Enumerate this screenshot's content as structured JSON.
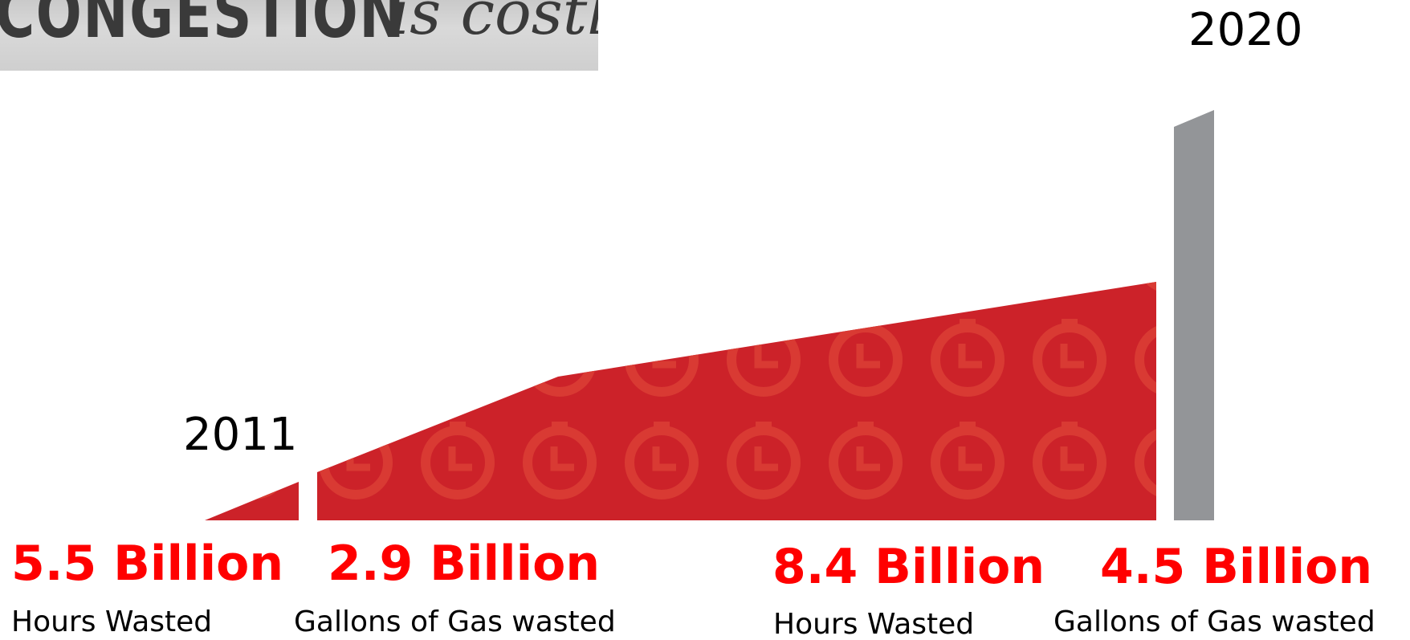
{
  "banner": {
    "word": "CONGESTION",
    "italic": "is costly"
  },
  "chart_data": {
    "type": "area",
    "x_start_label": "2011",
    "x_end_label": "2020",
    "bar_color": "#cc2229",
    "bar_pattern_color": "#d93a33",
    "end_bar_color": "#939598",
    "stats": [
      {
        "value": "5.5 Billion",
        "label": "Hours Wasted"
      },
      {
        "value": "2.9 Billion",
        "label": "Gallons of Gas wasted"
      },
      {
        "value": "8.4 Billion",
        "label": "Hours Wasted"
      },
      {
        "value": "4.5 Billion",
        "label": "Gallons of Gas wasted"
      }
    ],
    "accent_value_color": "#ff0000",
    "icon": "clock-icon"
  }
}
